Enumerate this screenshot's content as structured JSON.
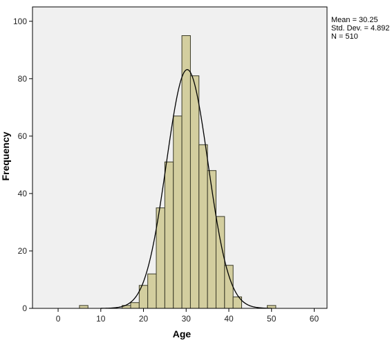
{
  "chart_data": {
    "type": "bar",
    "subtype": "histogram",
    "xlabel": "Age",
    "ylabel": "Frequency",
    "xlim": [
      -6,
      63
    ],
    "ylim": [
      0,
      105
    ],
    "x_ticks": [
      0,
      10,
      20,
      30,
      40,
      50,
      60
    ],
    "y_ticks": [
      0,
      20,
      40,
      60,
      80,
      100
    ],
    "bin_width": 2,
    "bins": [
      {
        "start": 5,
        "end": 7,
        "value": 1
      },
      {
        "start": 15,
        "end": 17,
        "value": 1
      },
      {
        "start": 17,
        "end": 19,
        "value": 2
      },
      {
        "start": 19,
        "end": 21,
        "value": 8
      },
      {
        "start": 21,
        "end": 23,
        "value": 12
      },
      {
        "start": 23,
        "end": 25,
        "value": 35
      },
      {
        "start": 25,
        "end": 27,
        "value": 51
      },
      {
        "start": 27,
        "end": 29,
        "value": 67
      },
      {
        "start": 29,
        "end": 31,
        "value": 95
      },
      {
        "start": 31,
        "end": 33,
        "value": 81
      },
      {
        "start": 33,
        "end": 35,
        "value": 57
      },
      {
        "start": 35,
        "end": 37,
        "value": 48
      },
      {
        "start": 37,
        "end": 39,
        "value": 32
      },
      {
        "start": 39,
        "end": 41,
        "value": 15
      },
      {
        "start": 41,
        "end": 43,
        "value": 4
      },
      {
        "start": 49,
        "end": 51,
        "value": 1
      }
    ],
    "normal_curve": {
      "mean": 30.25,
      "std_dev": 4.892,
      "n": 510
    },
    "stats_lines": [
      "Mean = 30.25",
      "Std. Dev. = 4.892",
      "N = 510"
    ],
    "grid": false,
    "legend": "top-right",
    "colors": {
      "bar_fill": "#d3ce9f",
      "bar_stroke": "#3a3a28",
      "plot_bg": "#f0f0f0",
      "curve": "#000000"
    }
  }
}
